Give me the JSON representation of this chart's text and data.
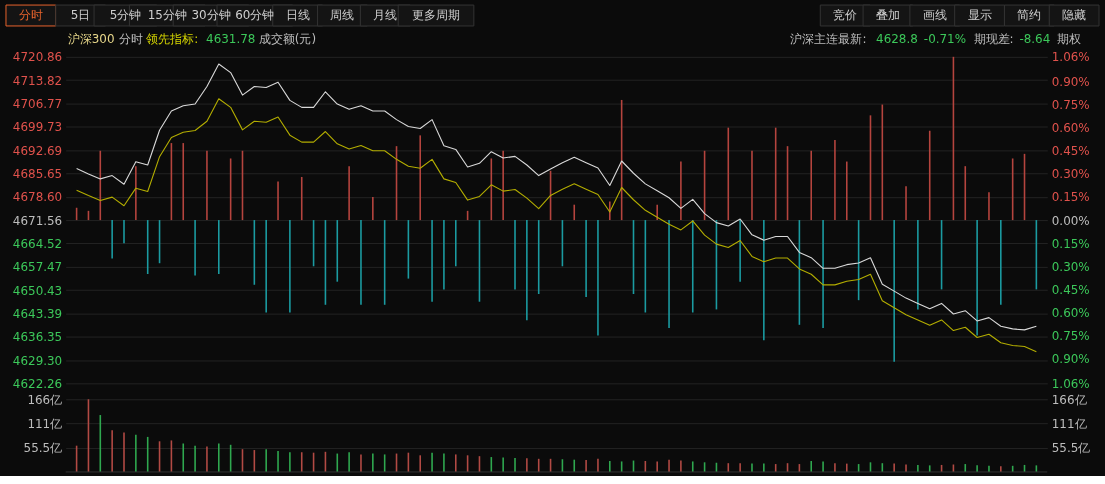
{
  "chart_data": [
    {
      "type": "line",
      "categories": [
        null,
        null,
        null,
        null,
        null,
        null,
        null,
        null,
        null,
        null,
        null,
        null,
        null,
        null,
        null,
        null,
        null,
        null,
        null,
        null,
        null,
        null,
        null,
        null,
        null,
        null,
        null,
        null,
        null,
        null,
        null,
        null,
        null,
        null,
        null,
        null,
        null,
        null,
        null,
        null,
        null,
        null,
        null,
        null,
        null,
        null,
        null,
        null,
        null,
        null,
        null,
        null,
        null,
        null,
        null,
        null,
        null,
        null,
        null,
        null,
        null,
        null,
        null,
        null,
        null,
        null,
        null,
        null,
        null,
        null,
        null,
        null,
        null,
        null,
        null,
        null,
        null,
        null,
        null,
        null,
        null,
        null
      ],
      "ylim": [
        4622.26,
        4720.86
      ],
      "yticks": [
        4720.86,
        4713.82,
        4706.77,
        4699.73,
        4692.69,
        4685.65,
        {
          "value": 4678.6,
          "label": "4678.60"
        },
        4671.56,
        4664.52,
        4657.47,
        4650.43,
        4643.39,
        4636.35,
        {
          "value": 4629.3,
          "label": "4629.30"
        },
        4622.26
      ],
      "y2lim": [
        -1.06,
        1.06
      ],
      "y2ticks": [
        {
          "value": 1.06,
          "label": "1.06%"
        },
        {
          "value": 0.9,
          "label": "0.90%"
        },
        {
          "value": 0.75,
          "label": "0.75%"
        },
        {
          "value": 0.6,
          "label": "0.60%"
        },
        {
          "value": 0.45,
          "label": "0.45%"
        },
        {
          "value": 0.3,
          "label": "0.30%"
        },
        {
          "value": 0.15,
          "label": "0.15%"
        },
        {
          "value": 0,
          "label": "0.00%"
        },
        {
          "value": -0.15,
          "label": "0.15%"
        },
        {
          "value": -0.3,
          "label": "0.30%"
        },
        {
          "value": -0.45,
          "label": "0.45%"
        },
        {
          "value": -0.6,
          "label": "0.60%"
        },
        {
          "value": -0.75,
          "label": "0.75%"
        },
        {
          "value": -0.9,
          "label": "0.90%"
        },
        {
          "value": -1.06,
          "label": "1.06%"
        }
      ],
      "grid": "y",
      "line_style": "solid",
      "series": [
        {
          "type": "bar",
          "axis": "y2",
          "values": [
            0.08,
            0.06,
            0.45,
            -0.25,
            -0.15,
            0.35,
            -0.35,
            -0.28,
            0.5,
            0.5,
            -0.36,
            0.45,
            -0.35,
            0.4,
            0.45,
            -0.42,
            -0.6,
            0.25,
            -0.6,
            0.28,
            -0.3,
            -0.55,
            -0.4,
            0.35,
            -0.55,
            0.15,
            -0.55,
            0.48,
            -0.38,
            0.55,
            -0.53,
            -0.45,
            -0.3,
            0.06,
            -0.53,
            0.4,
            0.45,
            -0.45,
            -0.65,
            -0.48,
            0.32,
            -0.3,
            0.1,
            -0.5,
            -0.75,
            0.12,
            0.78,
            -0.48,
            -0.6,
            0.1,
            -0.7,
            0.38,
            -0.6,
            0.45,
            -0.58,
            0.6,
            -0.4,
            0.45,
            -0.78,
            0.6,
            0.48,
            -0.68,
            0.45,
            -0.7,
            0.52,
            0.38,
            -0.52,
            0.68,
            0.75,
            -0.92,
            0.22,
            -0.58,
            0.58,
            -0.45,
            1.06,
            0.35,
            -0.75,
            0.18,
            -0.55,
            0.4,
            0.43,
            -0.45
          ],
          "colors": [
            "#b5443e",
            "#b5443e",
            "#b5443e",
            "#1b9ba1",
            "#1b9ba1",
            "#b5443e",
            "#1b9ba1",
            "#1b9ba1",
            "#b5443e",
            "#b5443e",
            "#1b9ba1",
            "#b5443e",
            "#1b9ba1",
            "#b5443e",
            "#b5443e",
            "#1b9ba1",
            "#1b9ba1",
            "#b5443e",
            "#1b9ba1",
            "#b5443e",
            "#1b9ba1",
            "#1b9ba1",
            "#1b9ba1",
            "#b5443e",
            "#1b9ba1",
            "#b5443e",
            "#1b9ba1",
            "#b5443e",
            "#1b9ba1",
            "#b5443e",
            "#1b9ba1",
            "#1b9ba1",
            "#1b9ba1",
            "#b5443e",
            "#1b9ba1",
            "#b5443e",
            "#b5443e",
            "#1b9ba1",
            "#1b9ba1",
            "#1b9ba1",
            "#b5443e",
            "#1b9ba1",
            "#b5443e",
            "#1b9ba1",
            "#1b9ba1",
            "#b5443e",
            "#b5443e",
            "#1b9ba1",
            "#1b9ba1",
            "#b5443e",
            "#1b9ba1",
            "#b5443e",
            "#1b9ba1",
            "#b5443e",
            "#1b9ba1",
            "#b5443e",
            "#1b9ba1",
            "#b5443e",
            "#1b9ba1",
            "#b5443e",
            "#b5443e",
            "#1b9ba1",
            "#b5443e",
            "#1b9ba1",
            "#b5443e",
            "#b5443e",
            "#1b9ba1",
            "#b5443e",
            "#b5443e",
            "#1b9ba1",
            "#b5443e",
            "#1b9ba1",
            "#b5443e",
            "#1b9ba1",
            "#b5443e",
            "#b5443e",
            "#1b9ba1",
            "#b5443e",
            "#1b9ba1",
            "#b5443e",
            "#b5443e",
            "#1b9ba1"
          ]
        },
        {
          "color": "#d9d9d9",
          "values": [
            4687.1,
            4685.5,
            4684.0,
            4685.0,
            4682.4,
            4689.2,
            4688.2,
            4698.7,
            4704.5,
            4706.1,
            4706.6,
            4711.9,
            4718.7,
            4716.1,
            4709.3,
            4711.9,
            4711.6,
            4713.2,
            4707.7,
            4705.6,
            4705.6,
            4710.3,
            4706.6,
            4705.0,
            4706.1,
            4704.5,
            4704.5,
            4701.9,
            4699.8,
            4699.2,
            4701.9,
            4694.0,
            4692.9,
            4687.6,
            4688.7,
            4692.2,
            4690.3,
            4690.8,
            4688.2,
            4685.0,
            4687.0,
            4688.9,
            4690.5,
            4688.9,
            4687.3,
            4682.0,
            4689.4,
            4685.7,
            4682.5,
            4680.4,
            4678.3,
            4675.1,
            4677.8,
            4673.5,
            4670.8,
            4669.8,
            4671.9,
            4667.1,
            4665.5,
            4666.6,
            4666.6,
            4661.8,
            4660.2,
            4657.0,
            4657.0,
            4658.1,
            4658.6,
            4660.2,
            4652.2,
            4650.1,
            4648.0,
            4646.4,
            4644.8,
            4646.4,
            4643.2,
            4644.2,
            4641.1,
            4642.1,
            4639.5,
            4638.7,
            4638.4,
            4639.5
          ]
        },
        {
          "color": "#b3ad00",
          "values": [
            4680.6,
            4679.0,
            4677.5,
            4678.5,
            4675.9,
            4681.2,
            4680.2,
            4690.7,
            4696.5,
            4698.1,
            4698.6,
            4701.4,
            4708.2,
            4705.6,
            4698.8,
            4701.4,
            4701.1,
            4702.7,
            4697.2,
            4695.1,
            4695.1,
            4698.3,
            4694.6,
            4693.0,
            4694.1,
            4692.5,
            4692.5,
            4689.9,
            4687.8,
            4687.2,
            4689.9,
            4684.0,
            4682.9,
            4677.6,
            4678.7,
            4682.2,
            4680.3,
            4680.8,
            4678.2,
            4675.0,
            4679.0,
            4680.9,
            4682.5,
            4680.9,
            4679.3,
            4674.0,
            4681.4,
            4677.7,
            4674.5,
            4672.4,
            4670.3,
            4668.6,
            4671.3,
            4667.0,
            4664.3,
            4663.3,
            4665.4,
            4660.6,
            4659.0,
            4660.1,
            4660.1,
            4656.8,
            4655.2,
            4652.0,
            4652.0,
            4653.1,
            4653.6,
            4655.2,
            4647.2,
            4645.1,
            4643.0,
            4641.4,
            4639.8,
            4641.4,
            4638.2,
            4639.2,
            4636.1,
            4637.1,
            4634.5,
            4633.7,
            4633.4,
            4631.8
          ]
        }
      ],
      "annotations": [
        "分时",
        "5日",
        "5分钟",
        "15分钟",
        "30分钟",
        "60分钟",
        "日线",
        "周线",
        "月线",
        "更多周期",
        "竞价",
        "叠加",
        "画线",
        "显示",
        "简约",
        "隐藏",
        "沪深300",
        "分时",
        "领先指标:",
        "4631.78",
        "成交额(元)",
        "沪深主连最新:",
        "4628.8",
        "-0.71%",
        "期现差:",
        "-8.64",
        "期权"
      ]
    },
    {
      "type": "bar",
      "categories": [
        null,
        null,
        null,
        null,
        null,
        null,
        null,
        null,
        null,
        null,
        null,
        null,
        null,
        null,
        null,
        null,
        null,
        null,
        null,
        null,
        null,
        null,
        null,
        null,
        null,
        null,
        null,
        null,
        null,
        null,
        null,
        null,
        null,
        null,
        null,
        null,
        null,
        null,
        null,
        null,
        null,
        null,
        null,
        null,
        null,
        null,
        null,
        null,
        null,
        null,
        null,
        null,
        null,
        null,
        null,
        null,
        null,
        null,
        null,
        null,
        null,
        null,
        null,
        null,
        null,
        null,
        null,
        null,
        null,
        null,
        null,
        null,
        null,
        null,
        null,
        null,
        null,
        null,
        null,
        null,
        null,
        null
      ],
      "values": [
        60,
        166,
        130,
        95,
        90,
        85,
        80,
        70,
        72,
        65,
        60,
        58,
        65,
        62,
        52,
        50,
        52,
        48,
        45,
        45,
        44,
        46,
        42,
        45,
        40,
        42,
        40,
        42,
        44,
        38,
        44,
        42,
        40,
        38,
        36,
        34,
        33,
        32,
        31,
        30,
        30,
        29,
        28,
        27,
        30,
        25,
        24,
        26,
        25,
        24,
        28,
        26,
        24,
        22,
        21,
        20,
        20,
        19,
        19,
        18,
        20,
        18,
        25,
        24,
        20,
        19,
        18,
        22,
        20,
        19,
        17,
        16,
        15,
        16,
        17,
        18,
        15,
        14,
        13,
        14,
        16,
        15
      ],
      "colors": [
        "#b24a44",
        "#b24a44",
        "#2fa84f",
        "#b24a44",
        "#b24a44",
        "#2fa84f",
        "#2fa84f",
        "#b24a44",
        "#b24a44",
        "#2fa84f",
        "#2fa84f",
        "#b24a44",
        "#2fa84f",
        "#2fa84f",
        "#b24a44",
        "#b24a44",
        "#2fa84f",
        "#2fa84f",
        "#2fa84f",
        "#b24a44",
        "#b24a44",
        "#b24a44",
        "#2fa84f",
        "#2fa84f",
        "#b24a44",
        "#2fa84f",
        "#2fa84f",
        "#b24a44",
        "#b24a44",
        "#b24a44",
        "#2fa84f",
        "#2fa84f",
        "#b24a44",
        "#b24a44",
        "#b24a44",
        "#2fa84f",
        "#2fa84f",
        "#2fa84f",
        "#b24a44",
        "#b24a44",
        "#b24a44",
        "#2fa84f",
        "#2fa84f",
        "#b24a44",
        "#b24a44",
        "#2fa84f",
        "#2fa84f",
        "#2fa84f",
        "#b24a44",
        "#b24a44",
        "#b24a44",
        "#b24a44",
        "#2fa84f",
        "#2fa84f",
        "#2fa84f",
        "#b24a44",
        "#b24a44",
        "#2fa84f",
        "#2fa84f",
        "#b24a44",
        "#b24a44",
        "#b24a44",
        "#2fa84f",
        "#2fa84f",
        "#b24a44",
        "#b24a44",
        "#2fa84f",
        "#2fa84f",
        "#2fa84f",
        "#b24a44",
        "#b24a44",
        "#2fa84f",
        "#2fa84f",
        "#b24a44",
        "#b24a44",
        "#2fa84f",
        "#2fa84f",
        "#2fa84f",
        "#b24a44",
        "#2fa84f",
        "#2fa84f",
        "#2fa84f"
      ],
      "ylim": [
        0,
        166
      ],
      "yticks": [
        {
          "value": 55.5,
          "label": "55.5亿"
        },
        {
          "value": 111,
          "label": "111亿"
        },
        {
          "value": 166,
          "label": "166亿"
        }
      ],
      "y2lim": [
        0,
        166
      ],
      "y2ticks": [
        {
          "value": 55.5,
          "label": "55.5亿"
        },
        {
          "value": 111,
          "label": "111亿"
        },
        {
          "value": 166,
          "label": "166亿"
        }
      ],
      "grid": "y"
    }
  ]
}
